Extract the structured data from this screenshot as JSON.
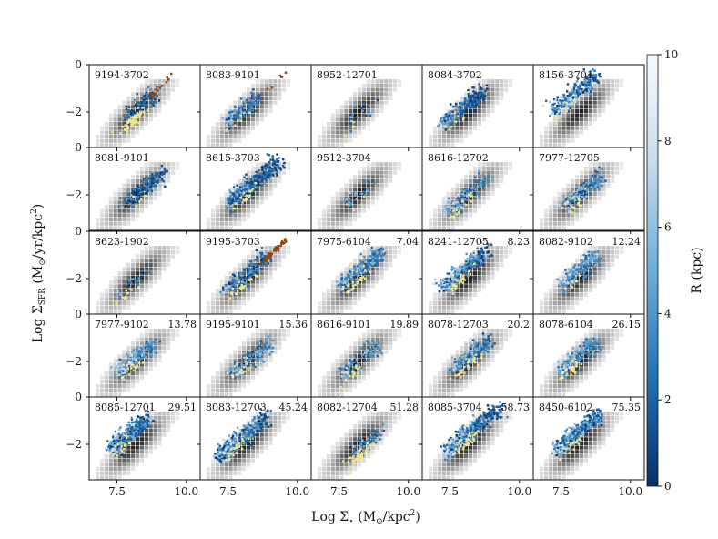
{
  "chart_data": {
    "type": "scatter",
    "layout": "5x5 grid of small-multiple hexbin + scatter panels sharing axes",
    "xlabel": "Log Σ★ (M⊙/kpc²)",
    "ylabel": "Log ΣSFR (M⊙/yr/kpc²)",
    "xlabel_parts": {
      "main": "Log Σ",
      "sub": "⋆",
      "unit": " (M",
      "sun": "⊙",
      "unit2": "/kpc",
      "sup": "2",
      "end": ")"
    },
    "ylabel_parts": {
      "main": "Log Σ",
      "sub": "SFR",
      "unit": " (M",
      "sun": "⊙",
      "unit2": "/yr/kpc",
      "sup": "2",
      "end": ")"
    },
    "xlim": [
      6.5,
      10.5
    ],
    "ylim": [
      -3.5,
      0
    ],
    "xticks": [
      7.5,
      10.0
    ],
    "xtick_labels": [
      "7.5",
      "10.0"
    ],
    "yticks": [
      0,
      -2
    ],
    "ytick_labels": [
      "0",
      "−2"
    ],
    "colorbar": {
      "label": "R (kpc)",
      "range": [
        0,
        10
      ],
      "ticks": [
        0,
        2,
        4,
        6,
        8,
        10
      ],
      "tick_labels": [
        "0",
        "2",
        "4",
        "6",
        "8",
        "10"
      ],
      "colors": [
        "#08306b",
        "#2171b5",
        "#6baed6",
        "#c6dbef",
        "#f7fbff"
      ]
    },
    "highlight_colors": {
      "yellow": "#f0e68c",
      "brown": "#8b4513"
    },
    "panels": [
      {
        "name": "9194-3702",
        "value": "",
        "cx": 8.3,
        "cy": -1.8,
        "spread": 0.35,
        "n": 90,
        "r": [
          0,
          6
        ],
        "yellow": 60,
        "brown": 18
      },
      {
        "name": "8083-9101",
        "value": "",
        "cx": 8.0,
        "cy": -1.9,
        "spread": 0.35,
        "n": 110,
        "r": [
          1,
          8
        ],
        "yellow": 8,
        "brown": 6
      },
      {
        "name": "8952-12701",
        "value": "",
        "cx": 8.3,
        "cy": -2.0,
        "spread": 0.3,
        "n": 25,
        "r": [
          1,
          8
        ],
        "yellow": 4,
        "brown": 0
      },
      {
        "name": "8084-3702",
        "value": "",
        "cx": 8.0,
        "cy": -1.8,
        "spread": 0.45,
        "n": 180,
        "r": [
          0,
          5
        ],
        "yellow": 6,
        "brown": 0
      },
      {
        "name": "8156-3701",
        "value": "",
        "cx": 8.0,
        "cy": -1.2,
        "spread": 0.5,
        "n": 260,
        "r": [
          0,
          9
        ],
        "yellow": 10,
        "brown": 0
      },
      {
        "name": "8081-9101",
        "value": "",
        "cx": 8.5,
        "cy": -1.7,
        "spread": 0.45,
        "n": 160,
        "r": [
          0,
          6
        ],
        "yellow": 6,
        "brown": 0
      },
      {
        "name": "8615-3703",
        "value": "",
        "cx": 8.4,
        "cy": -1.5,
        "spread": 0.55,
        "n": 320,
        "r": [
          0,
          7
        ],
        "yellow": 20,
        "brown": 0
      },
      {
        "name": "9512-3704",
        "value": "",
        "cx": 8.2,
        "cy": -2.0,
        "spread": 0.3,
        "n": 30,
        "r": [
          2,
          8
        ],
        "yellow": 3,
        "brown": 0
      },
      {
        "name": "8616-12702",
        "value": "",
        "cx": 8.1,
        "cy": -2.0,
        "spread": 0.45,
        "n": 120,
        "r": [
          2,
          9
        ],
        "yellow": 15,
        "brown": 0
      },
      {
        "name": "7977-12705",
        "value": "",
        "cx": 8.3,
        "cy": -1.8,
        "spread": 0.4,
        "n": 150,
        "r": [
          1,
          9
        ],
        "yellow": 10,
        "brown": 0
      },
      {
        "name": "8623-1902",
        "value": "",
        "cx": 8.0,
        "cy": -2.2,
        "spread": 0.3,
        "n": 25,
        "r": [
          2,
          9
        ],
        "yellow": 10,
        "brown": 0
      },
      {
        "name": "9195-3703",
        "value": "",
        "cx": 8.2,
        "cy": -1.8,
        "spread": 0.45,
        "n": 170,
        "r": [
          0,
          8
        ],
        "yellow": 20,
        "brown": 45
      },
      {
        "name": "7975-6104",
        "value": "7.04",
        "cx": 8.3,
        "cy": -1.6,
        "spread": 0.5,
        "n": 200,
        "r": [
          1,
          9
        ],
        "yellow": 25,
        "brown": 0
      },
      {
        "name": "8241-12705",
        "value": "8.23",
        "cx": 8.0,
        "cy": -1.6,
        "spread": 0.5,
        "n": 230,
        "r": [
          0,
          9
        ],
        "yellow": 25,
        "brown": 0
      },
      {
        "name": "8082-9102",
        "value": "12.24",
        "cx": 8.1,
        "cy": -1.7,
        "spread": 0.4,
        "n": 150,
        "r": [
          2,
          9
        ],
        "yellow": 5,
        "brown": 0
      },
      {
        "name": "7977-9102",
        "value": "13.78",
        "cx": 8.2,
        "cy": -1.8,
        "spread": 0.4,
        "n": 170,
        "r": [
          2,
          10
        ],
        "yellow": 15,
        "brown": 0
      },
      {
        "name": "9195-9101",
        "value": "15.36",
        "cx": 8.3,
        "cy": -1.9,
        "spread": 0.45,
        "n": 140,
        "r": [
          2,
          10
        ],
        "yellow": 8,
        "brown": 0
      },
      {
        "name": "8616-9101",
        "value": "19.89",
        "cx": 8.2,
        "cy": -2.0,
        "spread": 0.45,
        "n": 110,
        "r": [
          2,
          10
        ],
        "yellow": 15,
        "brown": 0
      },
      {
        "name": "8078-12703",
        "value": "20.2",
        "cx": 8.3,
        "cy": -1.7,
        "spread": 0.4,
        "n": 180,
        "r": [
          1,
          9
        ],
        "yellow": 25,
        "brown": 0
      },
      {
        "name": "8078-6104",
        "value": "26.15",
        "cx": 8.1,
        "cy": -1.8,
        "spread": 0.4,
        "n": 160,
        "r": [
          2,
          10
        ],
        "yellow": 20,
        "brown": 0
      },
      {
        "name": "8085-12701",
        "value": "29.51",
        "cx": 7.9,
        "cy": -1.6,
        "spread": 0.45,
        "n": 260,
        "r": [
          0,
          9
        ],
        "yellow": 15,
        "brown": 0
      },
      {
        "name": "8083-12703",
        "value": "45.24",
        "cx": 8.0,
        "cy": -1.7,
        "spread": 0.55,
        "n": 300,
        "r": [
          0,
          10
        ],
        "yellow": 15,
        "brown": 0
      },
      {
        "name": "8082-12704",
        "value": "51.28",
        "cx": 8.5,
        "cy": -1.9,
        "spread": 0.3,
        "n": 60,
        "r": [
          1,
          8
        ],
        "yellow": 35,
        "brown": 0
      },
      {
        "name": "8085-3704",
        "value": "58.73",
        "cx": 8.3,
        "cy": -1.4,
        "spread": 0.6,
        "n": 320,
        "r": [
          0,
          9
        ],
        "yellow": 30,
        "brown": 0
      },
      {
        "name": "8450-6102",
        "value": "75.35",
        "cx": 8.1,
        "cy": -1.5,
        "spread": 0.5,
        "n": 300,
        "r": [
          0,
          10
        ],
        "yellow": 15,
        "brown": 0
      }
    ]
  }
}
